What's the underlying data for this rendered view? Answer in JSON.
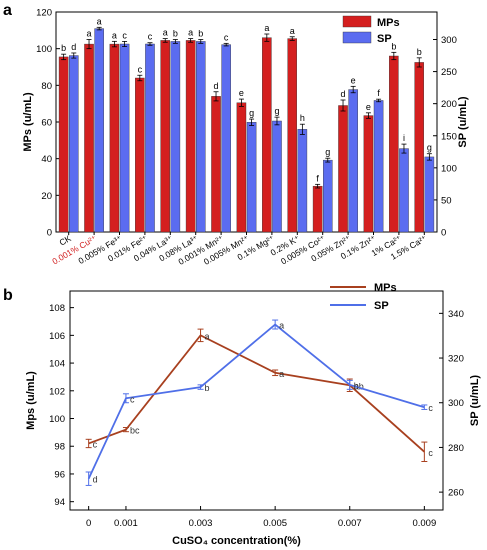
{
  "figure": {
    "panel_a_label": "a",
    "panel_b_label": "b"
  },
  "chart_data": [
    {
      "panel": "a",
      "type": "bar",
      "categories": [
        "CK",
        "0.001% Cu²⁺",
        "0.005% Fe³⁺",
        "0.01% Fe²⁺",
        "0.04% La³⁺",
        "0.08% La³⁺",
        "0.001% Mn²⁺",
        "0.005% Mn²⁺",
        "0.1% Mg²⁺",
        "0.2% K⁺",
        "0.005% Co²⁺",
        "0.05% Zn²⁺",
        "0.1% Zn²⁺",
        "1% Ca²⁺",
        "1.5% Ca²⁺"
      ],
      "category_label_colors": [
        "#000000",
        "#d11f1f",
        "#000000",
        "#000000",
        "#000000",
        "#000000",
        "#000000",
        "#000000",
        "#000000",
        "#000000",
        "#000000",
        "#000000",
        "#000000",
        "#000000",
        "#000000"
      ],
      "series": [
        {
          "name": "MPs",
          "axis": "left",
          "color": "#d41f1f",
          "values": [
            95.5,
            102.5,
            102.5,
            84,
            104.5,
            104.5,
            74,
            70.5,
            106,
            105.5,
            25,
            69,
            63.5,
            96,
            92.5
          ],
          "errors": [
            1.5,
            2.5,
            1.5,
            1.5,
            1,
            1,
            2.5,
            2,
            2,
            1,
            1,
            3,
            1.5,
            2,
            2.5
          ],
          "letters": [
            "b",
            "a",
            "a",
            "c",
            "a",
            "a",
            "d",
            "e",
            "a",
            "a",
            "f",
            "d",
            "e",
            "b",
            "b"
          ]
        },
        {
          "name": "SP",
          "axis": "right",
          "color": "#5b6cf0",
          "values": [
            275,
            317,
            293,
            293,
            297,
            297,
            292,
            171,
            173,
            160,
            112,
            222,
            205,
            130,
            117
          ],
          "errors": [
            4,
            2,
            4,
            2,
            3,
            3,
            2,
            5,
            6,
            8,
            3,
            5,
            2,
            7,
            5
          ],
          "letters": [
            "d",
            "a",
            "c",
            "c",
            "b",
            "b",
            "c",
            "g",
            "g",
            "h",
            "g",
            "e",
            "f",
            "i",
            "g"
          ]
        }
      ],
      "ylabel": "MPs (u/mL)",
      "ylabel_right": "SP (u/mL)",
      "ylim": [
        0,
        120
      ],
      "ylim_right": [
        0,
        342.86
      ],
      "yticks": [
        0,
        20,
        40,
        60,
        80,
        100,
        120
      ],
      "yticks_right": [
        0,
        50,
        100,
        150,
        200,
        250,
        300
      ],
      "legend": [
        "MPs",
        "SP"
      ],
      "legend_position": "top-right",
      "grid": false
    },
    {
      "panel": "b",
      "type": "line",
      "x": [
        0,
        0.001,
        0.003,
        0.005,
        0.007,
        0.009
      ],
      "x_tick_labels": [
        "0",
        "0.001",
        "0.003",
        "0.005",
        "0.007",
        "0.009"
      ],
      "series": [
        {
          "name": "MPs",
          "axis": "left",
          "color": "#a8401f",
          "values": [
            98.2,
            99.2,
            106,
            103.3,
            102.4,
            97.6
          ],
          "errors": [
            0.3,
            0.15,
            0.45,
            0.2,
            0.45,
            0.7
          ],
          "letters": [
            "c",
            "bc",
            "a",
            "a",
            "ab",
            "c"
          ]
        },
        {
          "name": "SP",
          "axis": "right",
          "color": "#4f6fe8",
          "values": [
            266,
            302,
            307,
            335,
            308,
            298
          ],
          "errors": [
            3,
            2,
            1,
            2,
            2,
            1
          ],
          "letters": [
            "d",
            "c",
            "b",
            "a",
            "b",
            "c"
          ]
        }
      ],
      "xlabel": "CuSO₄ concentration(%)",
      "ylabel": "Mps (u/mL)",
      "ylabel_right": "SP (u/mL)",
      "ylim": [
        93.4,
        109.2
      ],
      "ylim_right": [
        252,
        350
      ],
      "yticks": [
        94,
        96,
        98,
        100,
        102,
        104,
        106,
        108
      ],
      "yticks_right": [
        260,
        280,
        300,
        320,
        340
      ],
      "legend": [
        "MPs",
        "SP"
      ],
      "legend_position": "top-right",
      "grid": false
    }
  ]
}
